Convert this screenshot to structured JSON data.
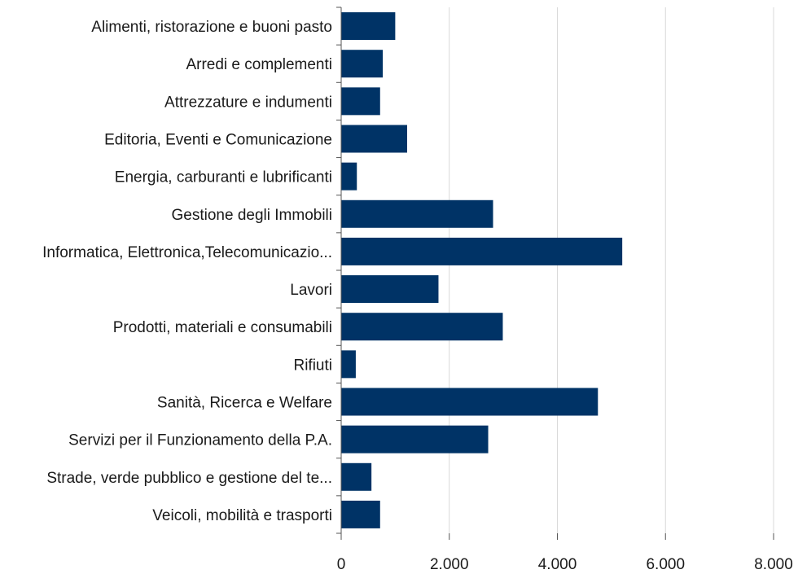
{
  "chart_data": {
    "type": "bar",
    "orientation": "horizontal",
    "title": "",
    "xlabel": "",
    "ylabel": "",
    "xlim": [
      0,
      8000
    ],
    "grid": "vertical",
    "legend": "none",
    "bar_color": "#003366",
    "x_ticks": [
      {
        "value": 0,
        "label": "0"
      },
      {
        "value": 2000,
        "label": "2.000"
      },
      {
        "value": 4000,
        "label": "4.000"
      },
      {
        "value": 6000,
        "label": "6.000"
      },
      {
        "value": 8000,
        "label": "8.000"
      }
    ],
    "categories": [
      "Alimenti, ristorazione e buoni pasto",
      "Arredi e complementi",
      "Attrezzature e indumenti",
      "Editoria, Eventi e Comunicazione",
      "Energia, carburanti e lubrificanti",
      "Gestione degli Immobili",
      "Informatica, Elettronica,Telecomunicazio...",
      "Lavori",
      "Prodotti, materiali e consumabili",
      "Rifiuti",
      "Sanità, Ricerca e Welfare",
      "Servizi per il Funzionamento della P.A.",
      "Strade, verde pubblico e gestione del te...",
      "Veicoli, mobilità e trasporti"
    ],
    "values": [
      1000,
      770,
      720,
      1220,
      290,
      2810,
      5200,
      1800,
      2990,
      270,
      4750,
      2720,
      560,
      720
    ]
  }
}
